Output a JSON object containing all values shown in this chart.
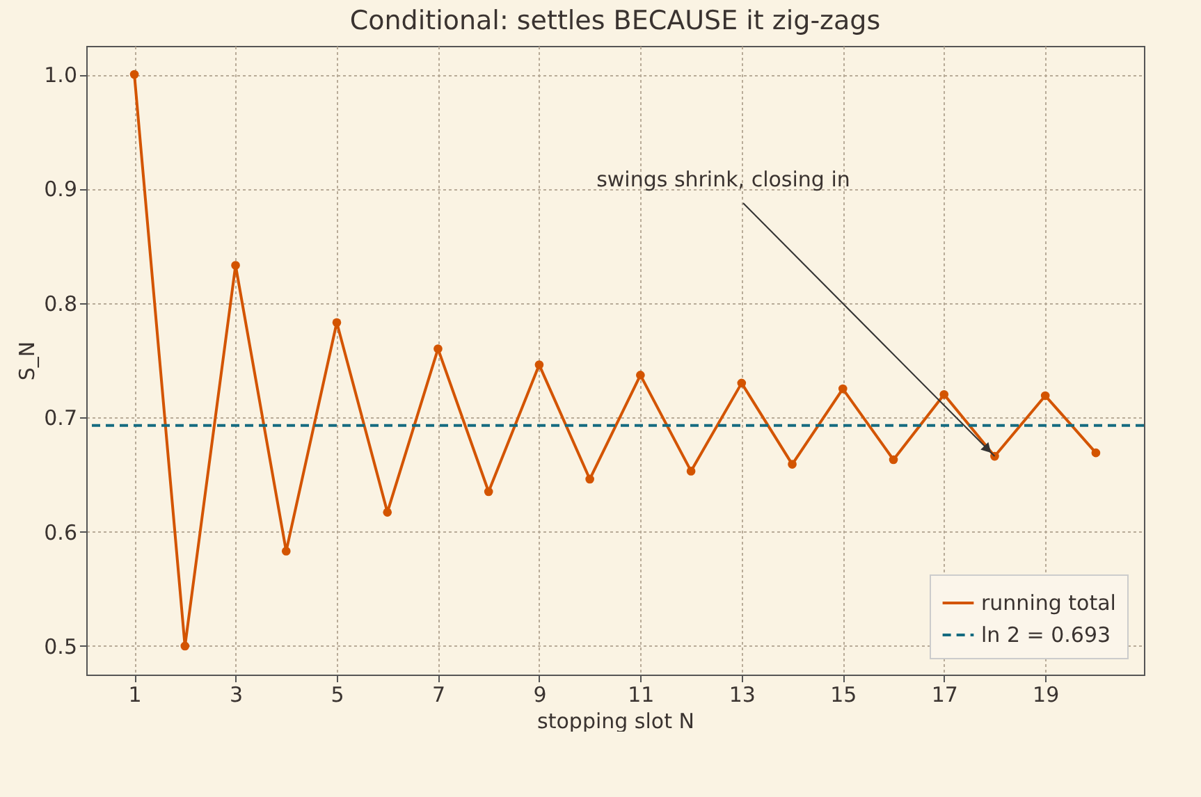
{
  "chart_data": {
    "type": "line",
    "title": "Conditional: settles BECAUSE it zig-zags",
    "xlabel": "stopping slot  N",
    "ylabel": "S_N",
    "x": [
      1,
      2,
      3,
      4,
      5,
      6,
      7,
      8,
      9,
      10,
      11,
      12,
      13,
      14,
      15,
      16,
      17,
      18,
      19,
      20
    ],
    "series": [
      {
        "name": "running total",
        "color": "#d35400",
        "values": [
          1.0,
          0.5,
          0.833,
          0.583,
          0.783,
          0.617,
          0.76,
          0.635,
          0.746,
          0.646,
          0.737,
          0.653,
          0.73,
          0.659,
          0.725,
          0.663,
          0.72,
          0.666,
          0.719,
          0.669
        ]
      }
    ],
    "xlim": [
      0.05,
      20.95
    ],
    "xticks": [
      1,
      3,
      5,
      7,
      9,
      11,
      13,
      15,
      17,
      19
    ],
    "ylim": [
      0.475,
      1.025
    ],
    "yticks": [
      0.5,
      0.6,
      0.7,
      0.8,
      0.9,
      {
        "value": 1.0,
        "label": "1.0"
      }
    ],
    "ref_lines": [
      {
        "axis": "y",
        "value": 0.693,
        "label": "ln 2 = 0.693",
        "color": "#156b80",
        "line_style": "dashed"
      }
    ],
    "annotations": [
      {
        "text": "swings shrink, closing in",
        "x": 18,
        "y": 0.666
      }
    ],
    "grid": true,
    "legend": "bottom right",
    "marker": "circle",
    "line_style": "solid"
  }
}
